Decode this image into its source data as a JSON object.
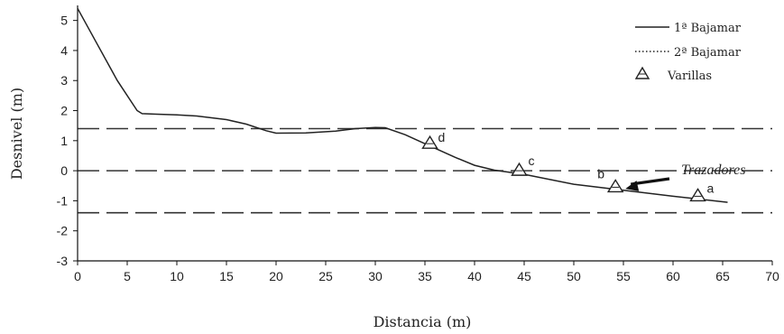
{
  "chart_data": {
    "type": "line",
    "xlabel": "Distancia (m)",
    "ylabel": "Desnivel (m)",
    "xlim": [
      0,
      70
    ],
    "ylim": [
      -3,
      5.5
    ],
    "x_ticks": [
      0,
      5,
      10,
      15,
      20,
      25,
      30,
      35,
      40,
      45,
      50,
      55,
      60,
      65,
      70
    ],
    "x_tick_labels": [
      "0",
      "5",
      "10",
      "15",
      "20",
      "25",
      "30",
      "35",
      "40",
      "45",
      "50",
      "55",
      "60",
      "65",
      "70"
    ],
    "y_ticks": [
      -3,
      -2,
      -1,
      0,
      1,
      2,
      3,
      4,
      5
    ],
    "y_tick_labels": [
      "-3",
      "-2",
      "-1",
      "0",
      "1",
      "2",
      "3",
      "4",
      "5"
    ],
    "grid": false,
    "legend_position": "top-right",
    "series": [
      {
        "name": "1ª Bajamar",
        "style": "solid",
        "x": [
          0,
          2,
          4,
          6,
          6.5,
          8,
          10,
          12,
          15,
          17,
          19,
          20,
          23,
          26,
          28,
          30,
          31,
          33,
          35,
          38,
          40,
          42,
          45,
          50,
          55,
          60,
          65.5
        ],
        "y": [
          5.4,
          4.2,
          3.0,
          2.0,
          1.9,
          1.88,
          1.86,
          1.82,
          1.7,
          1.55,
          1.33,
          1.25,
          1.26,
          1.32,
          1.4,
          1.44,
          1.43,
          1.2,
          0.9,
          0.45,
          0.18,
          0.02,
          -0.12,
          -0.45,
          -0.65,
          -0.85,
          -1.05
        ]
      },
      {
        "name": "2ª Bajamar",
        "style": "dotted",
        "x": [],
        "y": []
      },
      {
        "name": "Varillas",
        "style": "triangle-markers",
        "points": [
          {
            "x": 35.5,
            "y": 0.9,
            "label": "d"
          },
          {
            "x": 44.5,
            "y": 0.0,
            "label": "c"
          },
          {
            "x": 54.2,
            "y": -0.55,
            "label": "b"
          },
          {
            "x": 62.5,
            "y": -0.85,
            "label": "a"
          }
        ]
      }
    ],
    "reference_lines": [
      1.4,
      0,
      -1.4
    ],
    "annotation": {
      "text": "Trazadores",
      "target_x": 55.2,
      "target_y": -0.6
    }
  },
  "colors": {
    "line": "#222222",
    "axis": "#111111",
    "background": "#ffffff"
  }
}
